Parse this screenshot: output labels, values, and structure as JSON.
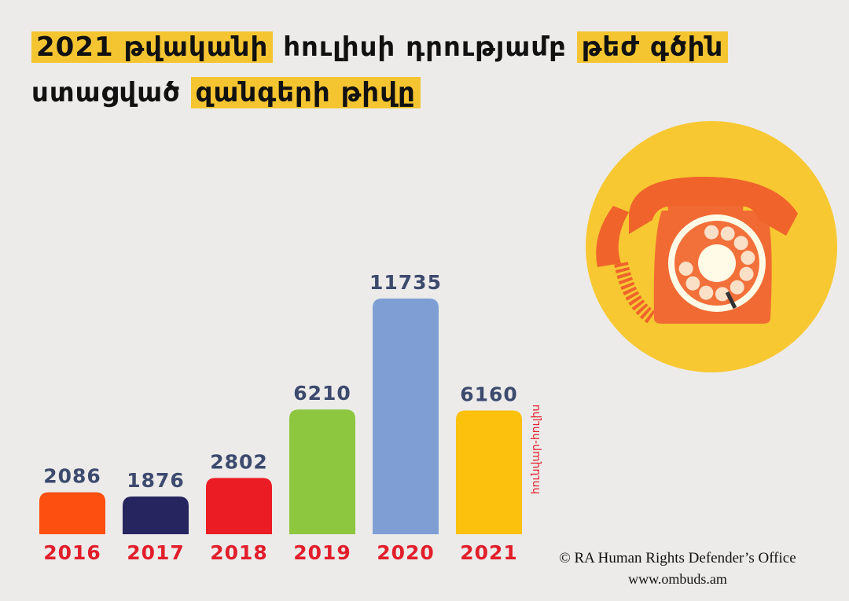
{
  "title": {
    "line1": [
      {
        "text": "2021 թվականի",
        "highlight": true
      },
      {
        "text": " հուլիսի դրությամբ  ",
        "highlight": false
      },
      {
        "text": "թեժ գծին",
        "highlight": true
      }
    ],
    "line2": [
      {
        "text": "ստացված ",
        "highlight": false
      },
      {
        "text": "զանգերի թիվը",
        "highlight": true
      }
    ]
  },
  "chart_data": {
    "type": "bar",
    "title": "2021 թվականի հուլիսի դրությամբ թեժ գծին ստացված զանգերի թիվը",
    "categories": [
      "2016",
      "2017",
      "2018",
      "2019",
      "2020",
      "2021"
    ],
    "values": [
      2086,
      1876,
      2802,
      6210,
      11735,
      6160
    ],
    "colors": [
      "#fc4f10",
      "#262560",
      "#ec1c24",
      "#8dc63f",
      "#7f9fd4",
      "#fbc10d"
    ],
    "annotation": "հունվար-հուլիս",
    "xlabel": "",
    "ylabel": "",
    "grid": false
  },
  "credit": {
    "line1": "© RA Human Rights Defender’s Office",
    "line2": "www.ombuds.am"
  },
  "icon": "rotary-telephone-icon"
}
